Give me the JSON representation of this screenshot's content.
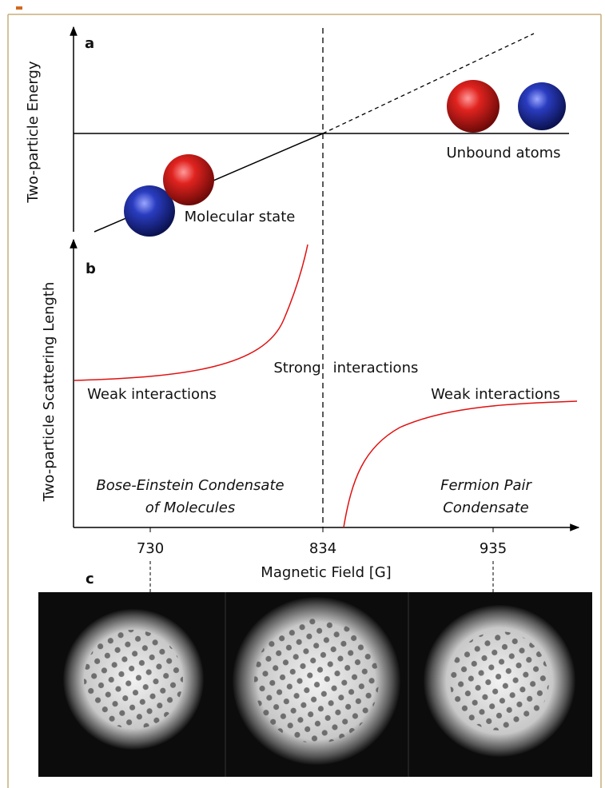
{
  "panel_a": {
    "label": "a",
    "y_axis_label": "Two-particle Energy",
    "annotations": [
      "Unbound atoms",
      "Molecular state"
    ]
  },
  "panel_b": {
    "label": "b",
    "y_axis_label": "Two-particle Scattering Length",
    "x_axis_label": "Magnetic Field [G]",
    "tick_labels": [
      "730",
      "834",
      "935"
    ],
    "annotations": {
      "strong": "Strong",
      "interactions": "interactions",
      "weak_left": "Weak interactions",
      "weak_right": "Weak interactions",
      "bec": [
        "Bose-Einstein Condensate",
        "of Molecules"
      ],
      "fermion": [
        "Fermion Pair",
        "Condensate"
      ]
    }
  },
  "panel_c": {
    "label": "c"
  }
}
